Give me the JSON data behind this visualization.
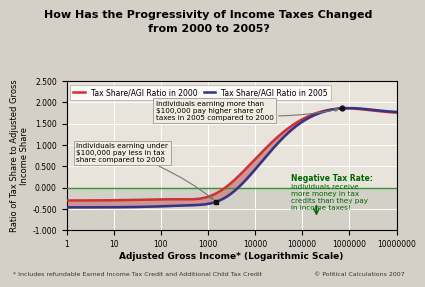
{
  "title_line1": "How Has the Progressivity of Income Taxes Changed",
  "title_line2": "from 2000 to 2005?",
  "xlabel": "Adjusted Gross Income* (Logarithmic Scale)",
  "ylabel": "Ratio of Tax Share to Adjusted Gross\nIncome Share",
  "ylim": [
    -1.0,
    2.5
  ],
  "yticks": [
    -1.0,
    -0.5,
    0.0,
    0.5,
    1.0,
    1.5,
    2.0,
    2.5
  ],
  "xtick_labels": [
    "1",
    "10",
    "100",
    "1000",
    "10000",
    "100000",
    "1000000",
    "10000000"
  ],
  "legend_2000_color": "#cc3333",
  "legend_2005_color": "#333388",
  "bg_color": "#d4d0c8",
  "plot_bg_color": "#e8e4dc",
  "grid_color": "#ffffff",
  "zeroline_color": "#339933",
  "footnote1": "* Includes refundable Earned Income Tax Credit and Additional Child Tax Credit",
  "footnote2": "© Political Calculations 2007",
  "annotation1": "Individuals earning more than\n$100,000 pay higher share of\ntaxes in 2005 compared to 2000",
  "annotation2": "Individuals earning under\n$100,000 pay less in tax\nshare compared to 2000",
  "annotation3_line1": "Negative Tax Rate:",
  "annotation3_rest": "Individuals receive\nmore money in tax\ncredits than they pay\nin income taxes!",
  "fill_upper_color": "#e08888",
  "fill_lower_color": "#88b0a8",
  "marker_color": "#111111",
  "annot_box_color": "#f0ede0",
  "annot_edge_color": "#999999"
}
